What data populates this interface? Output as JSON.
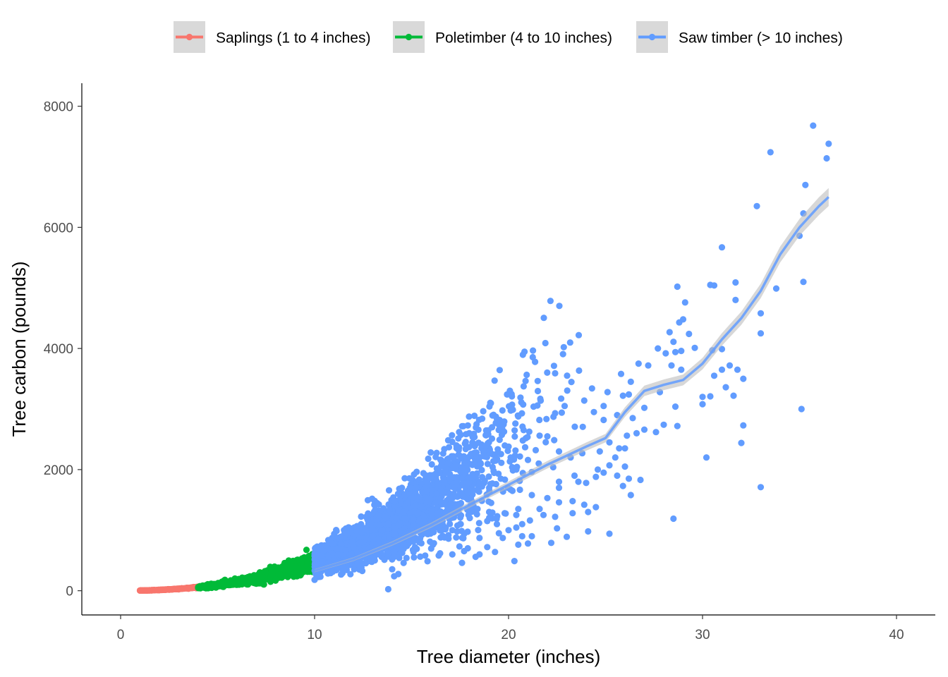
{
  "chart_data": {
    "type": "scatter",
    "xlabel": "Tree diameter (inches)",
    "ylabel": "Tree carbon (pounds)",
    "xlim": [
      -2,
      42
    ],
    "ylim": [
      -400,
      8380
    ],
    "x_ticks": [
      0,
      10,
      20,
      30,
      40
    ],
    "y_ticks": [
      0,
      2000,
      4000,
      6000,
      8000
    ],
    "x_tick_labels": [
      "0",
      "10",
      "20",
      "30",
      "40"
    ],
    "y_tick_labels": [
      "0",
      "2000",
      "4000",
      "6000",
      "8000"
    ],
    "grid": false,
    "legend_position": "top",
    "legend_title": "",
    "series": [
      {
        "name": "Saplings (1 to 4 inches)",
        "color": "#f8766d",
        "x_range": [
          1,
          4
        ],
        "points": [
          [
            1.0,
            3
          ],
          [
            1.5,
            6
          ],
          [
            2.0,
            10
          ],
          [
            2.5,
            16
          ],
          [
            3.0,
            24
          ],
          [
            3.5,
            33
          ],
          [
            3.9,
            42
          ]
        ]
      },
      {
        "name": "Poletimber (4 to 10 inches)",
        "color": "#00ba38",
        "x_range": [
          4,
          10
        ],
        "points": [
          [
            4.0,
            45
          ],
          [
            5.0,
            70
          ],
          [
            6.0,
            100
          ],
          [
            7.0,
            140
          ],
          [
            8.0,
            190
          ],
          [
            9.0,
            250
          ],
          [
            9.9,
            310
          ]
        ]
      },
      {
        "name": "Saw timber (> 10 inches)",
        "color": "#619cff",
        "x_range": [
          10,
          36.5
        ],
        "points": [
          [
            35.7,
            7680
          ],
          [
            36.5,
            7380
          ],
          [
            33.5,
            7240
          ],
          [
            36.4,
            7140
          ],
          [
            35.3,
            6700
          ],
          [
            32.8,
            6350
          ],
          [
            35.2,
            6230
          ],
          [
            35.0,
            5860
          ],
          [
            31.0,
            5670
          ],
          [
            35.2,
            5100
          ],
          [
            30.4,
            5050
          ],
          [
            30.6,
            5040
          ],
          [
            33.8,
            4990
          ],
          [
            28.7,
            5020
          ],
          [
            31.7,
            5090
          ],
          [
            31.7,
            4800
          ],
          [
            29.1,
            4760
          ],
          [
            28.8,
            4430
          ],
          [
            29.0,
            4480
          ],
          [
            33.0,
            4580
          ],
          [
            28.3,
            4270
          ],
          [
            29.3,
            4240
          ],
          [
            33.0,
            4250
          ],
          [
            28.5,
            4110
          ],
          [
            29.6,
            4010
          ],
          [
            30.5,
            3970
          ],
          [
            31.0,
            3990
          ],
          [
            28.9,
            3960
          ],
          [
            27.7,
            4000
          ],
          [
            28.1,
            3920
          ],
          [
            28.6,
            3940
          ],
          [
            26.7,
            3750
          ],
          [
            27.2,
            3720
          ],
          [
            28.4,
            3720
          ],
          [
            28.9,
            3650
          ],
          [
            31.0,
            3650
          ],
          [
            31.8,
            3650
          ],
          [
            32.1,
            3500
          ],
          [
            31.4,
            3720
          ],
          [
            30.6,
            3550
          ],
          [
            22.4,
            3590
          ],
          [
            25.8,
            3580
          ],
          [
            24.3,
            3340
          ],
          [
            25.1,
            3280
          ],
          [
            26.3,
            3450
          ],
          [
            26.2,
            3240
          ],
          [
            25.9,
            3220
          ],
          [
            27.8,
            3280
          ],
          [
            31.2,
            3360
          ],
          [
            30.4,
            3210
          ],
          [
            31.6,
            3220
          ],
          [
            30.0,
            3200
          ],
          [
            30.0,
            3080
          ],
          [
            28.6,
            3040
          ],
          [
            27.0,
            3020
          ],
          [
            35.1,
            3000
          ],
          [
            24.9,
            3050
          ],
          [
            23.9,
            3140
          ],
          [
            24.4,
            2950
          ],
          [
            22.4,
            2930
          ],
          [
            25.6,
            2900
          ],
          [
            24.9,
            2820
          ],
          [
            26.4,
            2850
          ],
          [
            28.0,
            2740
          ],
          [
            28.7,
            2720
          ],
          [
            27.0,
            2660
          ],
          [
            26.6,
            2600
          ],
          [
            27.6,
            2620
          ],
          [
            32.1,
            2730
          ],
          [
            26.1,
            2560
          ],
          [
            21.6,
            2560
          ],
          [
            22.0,
            2550
          ],
          [
            25.2,
            2450
          ],
          [
            32.0,
            2440
          ],
          [
            24.7,
            2300
          ],
          [
            26.0,
            2350
          ],
          [
            23.2,
            2200
          ],
          [
            25.7,
            2350
          ],
          [
            25.5,
            2200
          ],
          [
            30.2,
            2200
          ],
          [
            20.0,
            2380
          ],
          [
            21.4,
            2320
          ],
          [
            22.6,
            2300
          ],
          [
            23.8,
            2270
          ],
          [
            21.0,
            2160
          ],
          [
            22.3,
            2040
          ],
          [
            25.2,
            2070
          ],
          [
            26.0,
            2050
          ],
          [
            24.9,
            1950
          ],
          [
            20.4,
            2000
          ],
          [
            21.2,
            1960
          ],
          [
            23.4,
            1900
          ],
          [
            24.5,
            1880
          ],
          [
            25.6,
            1900
          ],
          [
            26.2,
            1850
          ],
          [
            26.8,
            1830
          ],
          [
            22.6,
            1800
          ],
          [
            24.0,
            1780
          ],
          [
            25.9,
            1730
          ],
          [
            26.3,
            1580
          ],
          [
            33.0,
            1710
          ],
          [
            19.6,
            1850
          ],
          [
            18.5,
            1780
          ],
          [
            17.2,
            1700
          ],
          [
            16.9,
            1710
          ],
          [
            16.3,
            1600
          ],
          [
            15.8,
            1520
          ],
          [
            17.9,
            1620
          ],
          [
            19.0,
            1700
          ],
          [
            20.2,
            1650
          ],
          [
            21.2,
            1580
          ],
          [
            22.0,
            1530
          ],
          [
            22.6,
            1460
          ],
          [
            23.3,
            1480
          ],
          [
            23.9,
            1420
          ],
          [
            24.5,
            1380
          ],
          [
            21.8,
            1250
          ],
          [
            21.1,
            1160
          ],
          [
            22.4,
            1220
          ],
          [
            23.3,
            1280
          ],
          [
            24.1,
            1300
          ],
          [
            28.5,
            1190
          ],
          [
            20.5,
            1350
          ],
          [
            19.8,
            1280
          ],
          [
            18.9,
            1150
          ],
          [
            17.5,
            1100
          ],
          [
            20.7,
            1100
          ],
          [
            20.0,
            1000
          ],
          [
            19.5,
            950
          ],
          [
            18.5,
            870
          ],
          [
            19.7,
            870
          ],
          [
            20.7,
            900
          ],
          [
            21.2,
            900
          ],
          [
            22.5,
            1030
          ],
          [
            23.0,
            890
          ],
          [
            24.1,
            980
          ],
          [
            25.2,
            940
          ],
          [
            20.5,
            760
          ],
          [
            21.0,
            780
          ],
          [
            22.2,
            790
          ],
          [
            18.9,
            720
          ],
          [
            19.3,
            640
          ],
          [
            17.9,
            700
          ],
          [
            18.5,
            600
          ],
          [
            17.1,
            600
          ],
          [
            16.4,
            580
          ],
          [
            15.7,
            580
          ],
          [
            18.3,
            560
          ],
          [
            20.3,
            490
          ],
          [
            17.6,
            460
          ],
          [
            15.2,
            1400
          ],
          [
            14.6,
            1300
          ],
          [
            14.2,
            1200
          ],
          [
            13.8,
            1100
          ],
          [
            16.0,
            1300
          ],
          [
            15.4,
            1150
          ],
          [
            13.5,
            1000
          ],
          [
            13.0,
            900
          ],
          [
            12.4,
            800
          ],
          [
            12.0,
            720
          ],
          [
            11.6,
            660
          ],
          [
            11.2,
            600
          ],
          [
            10.8,
            540
          ],
          [
            10.4,
            480
          ],
          [
            10.1,
            420
          ],
          [
            14.6,
            900
          ],
          [
            15.3,
            1000
          ],
          [
            16.6,
            1150
          ],
          [
            17.4,
            1350
          ],
          [
            18.1,
            1480
          ],
          [
            19.0,
            1300
          ],
          [
            18.0,
            1200
          ],
          [
            17.1,
            1000
          ],
          [
            16.5,
            880
          ],
          [
            15.4,
            800
          ],
          [
            14.6,
            760
          ],
          [
            13.9,
            720
          ],
          [
            13.2,
            660
          ],
          [
            12.6,
            600
          ],
          [
            12.0,
            540
          ],
          [
            11.3,
            480
          ],
          [
            10.7,
            410
          ],
          [
            10.2,
            340
          ],
          [
            14.1,
            560
          ],
          [
            13.1,
            500
          ],
          [
            12.4,
            420
          ],
          [
            11.5,
            360
          ],
          [
            10.8,
            300
          ],
          [
            10.3,
            230
          ],
          [
            15.1,
            640
          ],
          [
            16.1,
            760
          ],
          [
            17.3,
            880
          ],
          [
            19.4,
            1100
          ],
          [
            20.4,
            1250
          ],
          [
            21.6,
            1350
          ],
          [
            22.6,
            1700
          ],
          [
            23.6,
            1800
          ],
          [
            24.6,
            2000
          ],
          [
            19.1,
            1450
          ],
          [
            18.4,
            1350
          ],
          [
            16.9,
            1230
          ],
          [
            16.0,
            1050
          ],
          [
            14.8,
            880
          ],
          [
            13.6,
            800
          ],
          [
            12.8,
            700
          ],
          [
            11.9,
            610
          ],
          [
            11.0,
            520
          ],
          [
            10.5,
            360
          ],
          [
            10.1,
            250
          ],
          [
            10.0,
            180
          ]
        ],
        "smooth_line": [
          [
            10,
            330
          ],
          [
            12,
            520
          ],
          [
            14,
            780
          ],
          [
            16,
            1080
          ],
          [
            18,
            1420
          ],
          [
            20,
            1750
          ],
          [
            22,
            2080
          ],
          [
            24,
            2380
          ],
          [
            25,
            2520
          ],
          [
            26,
            2950
          ],
          [
            27,
            3300
          ],
          [
            28,
            3400
          ],
          [
            29,
            3480
          ],
          [
            30,
            3750
          ],
          [
            31,
            4150
          ],
          [
            32,
            4500
          ],
          [
            33,
            4950
          ],
          [
            34,
            5550
          ],
          [
            35,
            6000
          ],
          [
            36,
            6350
          ],
          [
            36.5,
            6500
          ]
        ]
      }
    ]
  }
}
